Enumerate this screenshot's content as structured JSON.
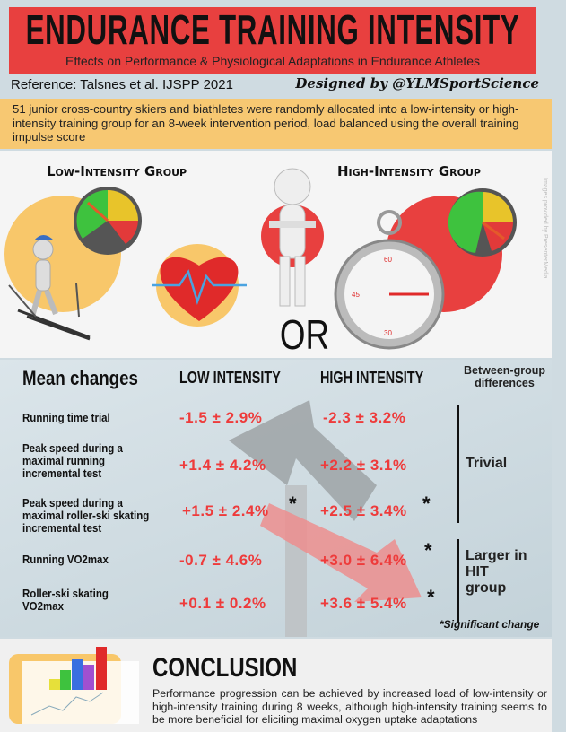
{
  "header": {
    "title": "ENDURANCE TRAINING INTENSITY",
    "subtitle": "Effects on Performance & Physiological Adaptations in Endurance Athletes"
  },
  "reference": "Reference: Talsnes et al. IJSPP 2021",
  "designer": "Designed by @YLMSportScience",
  "intro": "51 junior cross-country skiers and biathletes were randomly allocated into a low-intensity or high-intensity training group for an 8-week intervention period, load balanced using the overall training impulse score",
  "groups": {
    "low": "Low-Intensity Group",
    "high": "High-Intensity Group",
    "or": "OR",
    "credit": "Images provided by PresenterMedia"
  },
  "table": {
    "headers": {
      "measure": "Mean changes",
      "low": "LOW INTENSITY",
      "high": "HIGH INTENSITY",
      "between": "Between-group differences"
    },
    "rows": [
      {
        "label": "Running time trial",
        "low": "-1.5 ± 2.9%",
        "high": "-2.3 ± 3.2%",
        "low_sig": "",
        "high_sig": ""
      },
      {
        "label": "Peak speed during a maximal running incremental test",
        "low": "+1.4 ± 4.2%",
        "high": "+2.2 ± 3.1%",
        "low_sig": "",
        "high_sig": ""
      },
      {
        "label": "Peak speed during a maximal roller-ski skating incremental test",
        "low": "+1.5 ± 2.4%",
        "high": "+2.5 ± 3.4%",
        "low_sig": "*",
        "high_sig": "*"
      },
      {
        "label": "Running VO2max",
        "low": "-0.7 ± 4.6%",
        "high": "+3.0 ± 6.4%",
        "low_sig": "",
        "high_sig": "*"
      },
      {
        "label": "Roller-ski skating VO2max",
        "low": "+0.1 ± 0.2%",
        "high": "+3.6 ± 5.4%",
        "low_sig": "",
        "high_sig": "*"
      }
    ],
    "between": {
      "trivial": "Trivial",
      "larger": "Larger in HIT group"
    },
    "footnote": "*Significant change"
  },
  "conclusion": {
    "title": "CONCLUSION",
    "text": "Performance progression can be achieved by increased load of low-intensity or high-intensity training during 8 weeks, although high-intensity training seems to be more beneficial for eliciting maximal oxygen uptake adaptations"
  },
  "colors": {
    "red": "#e8403f",
    "orange": "#f7c872",
    "value_red": "#ee3b3b"
  }
}
